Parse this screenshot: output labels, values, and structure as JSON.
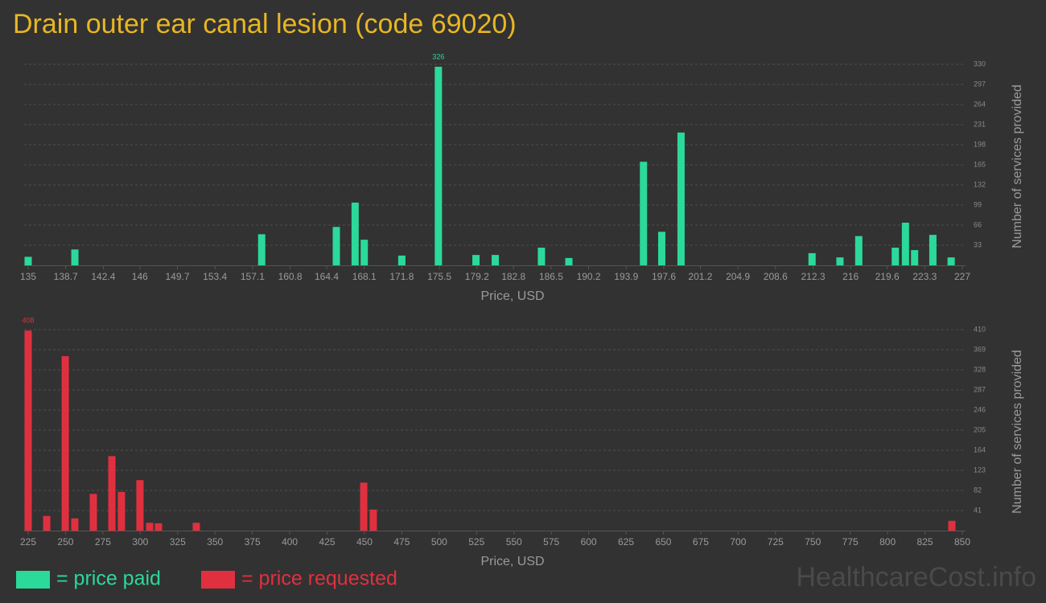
{
  "title": "Drain outer ear canal lesion (code 69020)",
  "chart_data": [
    {
      "type": "bar",
      "x": [
        135,
        139.6,
        158.0,
        165.35,
        167.2,
        168.1,
        171.8,
        175.4,
        179.1,
        181.0,
        185.55,
        188.25,
        195.6,
        197.4,
        199.3,
        212.2,
        214.95,
        216.8,
        220.4,
        221.4,
        222.3,
        224.1,
        225.9
      ],
      "series": [
        {
          "name": "= price paid",
          "color": "#2bd99b",
          "values": [
            14,
            26,
            51,
            63,
            103,
            42,
            16,
            326,
            17,
            17,
            29,
            12,
            170,
            55,
            218,
            20,
            13,
            48,
            29,
            70,
            25,
            50,
            13
          ]
        }
      ],
      "xlim": [
        135,
        227
      ],
      "xticks": [
        135,
        138.7,
        142.4,
        146,
        149.7,
        153.4,
        157.1,
        160.8,
        164.4,
        168.1,
        171.8,
        175.5,
        179.2,
        182.8,
        186.5,
        190.2,
        193.9,
        197.6,
        201.2,
        204.9,
        208.6,
        212.3,
        216,
        219.6,
        223.3,
        227
      ],
      "ylim": [
        0,
        330
      ],
      "yticks": [
        33,
        66,
        99,
        132,
        165,
        198,
        231,
        264,
        297,
        330
      ],
      "xlabel": "Price, USD",
      "ylabel": "Number of services provided",
      "grid": true
    },
    {
      "type": "bar",
      "x": [
        225,
        237.4,
        249.8,
        256.2,
        268.6,
        281.0,
        287.4,
        299.8,
        306.3,
        312.2,
        337.5,
        449.5,
        455.9,
        843.0
      ],
      "series": [
        {
          "name": "= price requested",
          "color": "#e0303f",
          "values": [
            408,
            30,
            356,
            25,
            75,
            152,
            79,
            103,
            16,
            15,
            16,
            98,
            43,
            20
          ]
        }
      ],
      "xlim": [
        225,
        850
      ],
      "xticks": [
        225,
        250,
        275,
        300,
        325,
        350,
        375,
        400,
        425,
        450,
        475,
        500,
        525,
        550,
        575,
        600,
        625,
        650,
        675,
        700,
        725,
        750,
        775,
        800,
        825,
        850
      ],
      "ylim": [
        0,
        410
      ],
      "yticks": [
        41,
        82,
        123,
        164,
        205,
        246,
        287,
        328,
        369,
        410
      ],
      "xlabel": "Price, USD",
      "ylabel": "Number of services provided",
      "grid": true
    }
  ],
  "watermark": "HealthcareCost.info"
}
